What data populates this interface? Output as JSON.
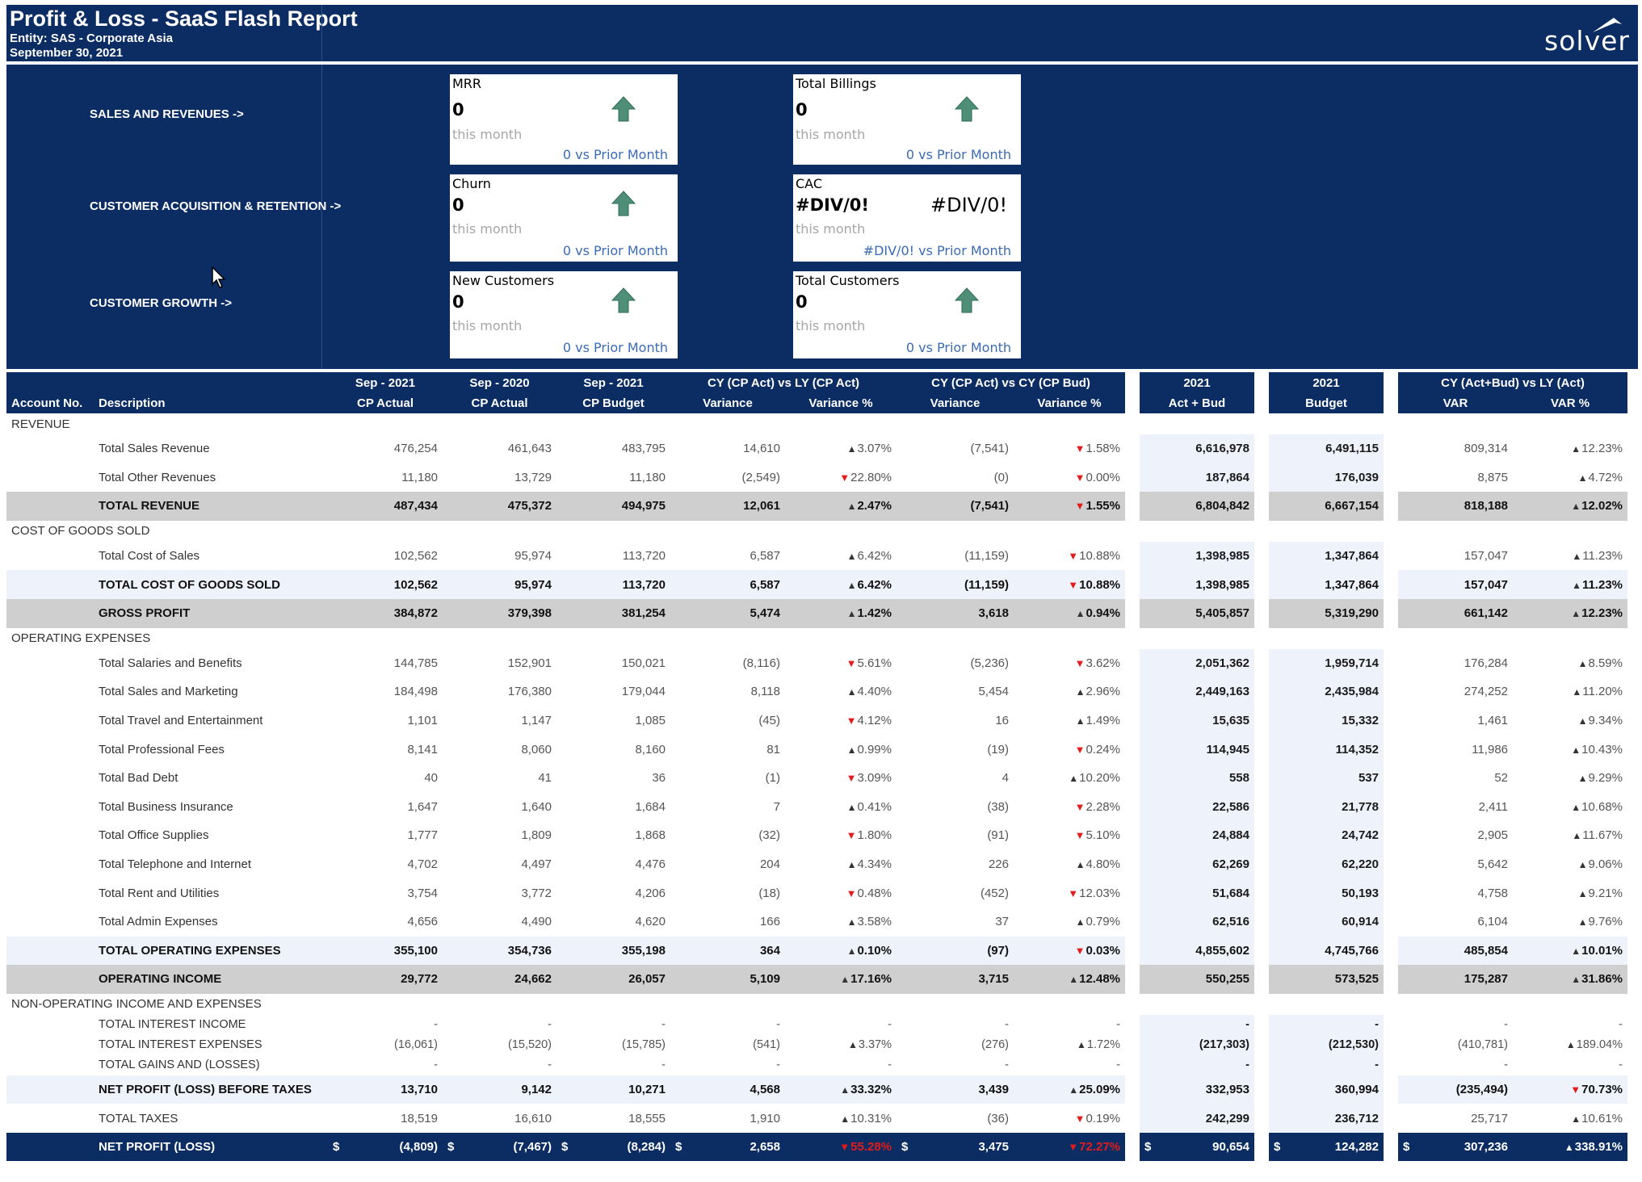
{
  "header": {
    "title": "Profit & Loss - SaaS Flash Report",
    "entity": "Entity: SAS - Corporate Asia",
    "date": "September 30, 2021",
    "logo": "solver"
  },
  "sections": {
    "sales": "SALES AND REVENUES ->",
    "acq": "CUSTOMER ACQUISITION & RETENTION ->",
    "growth": "CUSTOMER GROWTH ->"
  },
  "kpis": {
    "mrr": {
      "title": "MRR",
      "value": "0",
      "sub": "this month",
      "prior": "0 vs Prior Month"
    },
    "billings": {
      "title": "Total Billings",
      "value": "0",
      "sub": "this month",
      "prior": "0 vs Prior Month"
    },
    "churn": {
      "title": "Churn",
      "value": "0",
      "sub": "this month",
      "prior": "0 vs Prior Month"
    },
    "cac": {
      "title": "CAC",
      "value": "#DIV/0!",
      "value2": "#DIV/0!",
      "sub": "this month",
      "prior": "#DIV/0! vs Prior Month"
    },
    "newcust": {
      "title": "New Customers",
      "value": "0",
      "sub": "this month",
      "prior": "0 vs Prior Month"
    },
    "totcust": {
      "title": "Total Customers",
      "value": "0",
      "sub": "this month",
      "prior": "0 vs Prior Month"
    }
  },
  "table": {
    "head1": [
      "Sep - 2021",
      "Sep - 2020",
      "Sep - 2021",
      "CY (CP Act) vs LY (CP Act)",
      "CY (CP Act) vs CY (CP Bud)",
      "2021",
      "2021",
      "CY (Act+Bud) vs LY (Act)"
    ],
    "head2": [
      "Account No.",
      "Description",
      "CP Actual",
      "CP Actual",
      "CP Budget",
      "Variance",
      "Variance %",
      "Variance",
      "Variance %",
      "Act + Bud",
      "Budget",
      "VAR",
      "VAR %"
    ],
    "cats": [
      "REVENUE",
      "COST OF GOODS SOLD",
      "OPERATING EXPENSES",
      "NON-OPERATING INCOME AND EXPENSES"
    ],
    "rows": [
      [
        "Total Sales Revenue",
        "476,254",
        "461,643",
        "483,795",
        "14,610",
        "3.07%",
        "(7,541)",
        "1.58%",
        "6,616,978",
        "6,491,115",
        "809,314",
        "12.23%"
      ],
      [
        "Total Other Revenues",
        "11,180",
        "13,729",
        "11,180",
        "(2,549)",
        "22.80%",
        "(0)",
        "0.00%",
        "187,864",
        "176,039",
        "8,875",
        "4.72%"
      ],
      [
        "TOTAL REVENUE",
        "487,434",
        "475,372",
        "494,975",
        "12,061",
        "2.47%",
        "(7,541)",
        "1.55%",
        "6,804,842",
        "6,667,154",
        "818,188",
        "12.02%"
      ],
      [
        "Total Cost of Sales",
        "102,562",
        "95,974",
        "113,720",
        "6,587",
        "6.42%",
        "(11,159)",
        "10.88%",
        "1,398,985",
        "1,347,864",
        "157,047",
        "11.23%"
      ],
      [
        "TOTAL COST OF GOODS SOLD",
        "102,562",
        "95,974",
        "113,720",
        "6,587",
        "6.42%",
        "(11,159)",
        "10.88%",
        "1,398,985",
        "1,347,864",
        "157,047",
        "11.23%"
      ],
      [
        "GROSS PROFIT",
        "384,872",
        "379,398",
        "381,254",
        "5,474",
        "1.42%",
        "3,618",
        "0.94%",
        "5,405,857",
        "5,319,290",
        "661,142",
        "12.23%"
      ],
      [
        "Total Salaries and Benefits",
        "144,785",
        "152,901",
        "150,021",
        "(8,116)",
        "5.61%",
        "(5,236)",
        "3.62%",
        "2,051,362",
        "1,959,714",
        "176,284",
        "8.59%"
      ],
      [
        "Total Sales and Marketing",
        "184,498",
        "176,380",
        "179,044",
        "8,118",
        "4.40%",
        "5,454",
        "2.96%",
        "2,449,163",
        "2,435,984",
        "274,252",
        "11.20%"
      ],
      [
        "Total Travel and Entertainment",
        "1,101",
        "1,147",
        "1,085",
        "(45)",
        "4.12%",
        "16",
        "1.49%",
        "15,635",
        "15,332",
        "1,461",
        "9.34%"
      ],
      [
        "Total Professional Fees",
        "8,141",
        "8,060",
        "8,160",
        "81",
        "0.99%",
        "(19)",
        "0.24%",
        "114,945",
        "114,352",
        "11,986",
        "10.43%"
      ],
      [
        "Total Bad Debt",
        "40",
        "41",
        "36",
        "(1)",
        "3.09%",
        "4",
        "10.20%",
        "558",
        "537",
        "52",
        "9.29%"
      ],
      [
        "Total Business Insurance",
        "1,647",
        "1,640",
        "1,684",
        "7",
        "0.41%",
        "(38)",
        "2.28%",
        "22,586",
        "21,778",
        "2,411",
        "10.68%"
      ],
      [
        "Total Office Supplies",
        "1,777",
        "1,809",
        "1,868",
        "(32)",
        "1.80%",
        "(91)",
        "5.10%",
        "24,884",
        "24,742",
        "2,905",
        "11.67%"
      ],
      [
        "Total Telephone and Internet",
        "4,702",
        "4,497",
        "4,476",
        "204",
        "4.34%",
        "226",
        "4.80%",
        "62,269",
        "62,220",
        "5,642",
        "9.06%"
      ],
      [
        "Total Rent and Utilities",
        "3,754",
        "3,772",
        "4,206",
        "(18)",
        "0.48%",
        "(452)",
        "12.03%",
        "51,684",
        "50,193",
        "4,758",
        "9.21%"
      ],
      [
        "Total Admin Expenses",
        "4,656",
        "4,490",
        "4,620",
        "166",
        "3.58%",
        "37",
        "0.79%",
        "62,516",
        "60,914",
        "6,104",
        "9.76%"
      ],
      [
        "TOTAL OPERATING EXPENSES",
        "355,100",
        "354,736",
        "355,198",
        "364",
        "0.10%",
        "(97)",
        "0.03%",
        "4,855,602",
        "4,745,766",
        "485,854",
        "10.01%"
      ],
      [
        "OPERATING INCOME",
        "29,772",
        "24,662",
        "26,057",
        "5,109",
        "17.16%",
        "3,715",
        "12.48%",
        "550,255",
        "573,525",
        "175,287",
        "31.86%"
      ],
      [
        "TOTAL INTEREST INCOME",
        "-",
        "-",
        "-",
        "-",
        "-",
        "-",
        "-",
        "-",
        "-",
        "-",
        "-"
      ],
      [
        "TOTAL INTEREST EXPENSES",
        "(16,061)",
        "(15,520)",
        "(15,785)",
        "(541)",
        "3.37%",
        "(276)",
        "1.72%",
        "(217,303)",
        "(212,530)",
        "(410,781)",
        "189.04%"
      ],
      [
        "TOTAL GAINS AND (LOSSES)",
        "-",
        "-",
        "-",
        "-",
        "-",
        "-",
        "-",
        "-",
        "-",
        "-",
        "-"
      ],
      [
        "NET PROFIT (LOSS) BEFORE TAXES",
        "13,710",
        "9,142",
        "10,271",
        "4,568",
        "33.32%",
        "3,439",
        "25.09%",
        "332,953",
        "360,994",
        "(235,494)",
        "70.73%"
      ],
      [
        "TOTAL TAXES",
        "18,519",
        "16,610",
        "18,555",
        "1,910",
        "10.31%",
        "(36)",
        "0.19%",
        "242,299",
        "236,712",
        "25,717",
        "10.61%"
      ],
      [
        "NET PROFIT (LOSS)",
        "(4,809)",
        "(7,467)",
        "(8,284)",
        "2,658",
        "55.28%",
        "3,475",
        "72.27%",
        "90,654",
        "124,282",
        "307,236",
        "338.91%"
      ]
    ],
    "currency": "$"
  }
}
